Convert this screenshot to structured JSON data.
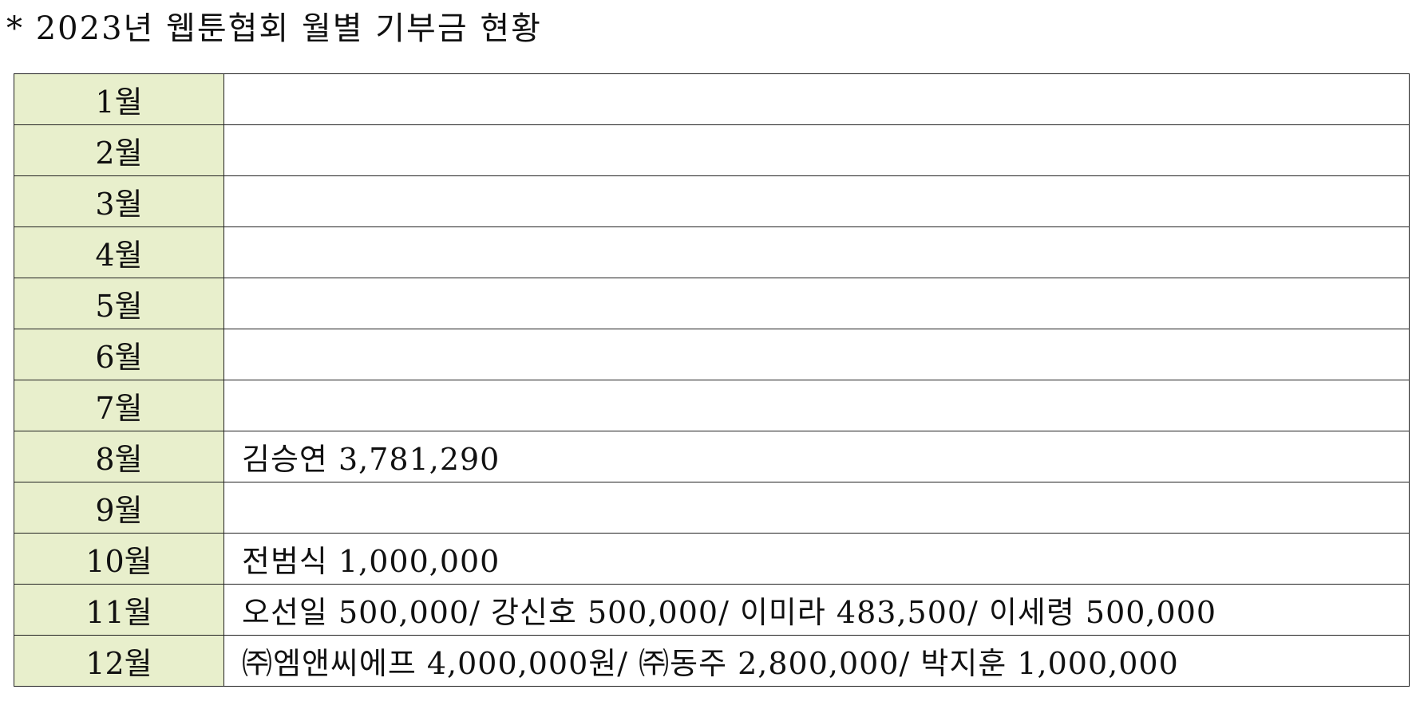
{
  "title": "* 2023년 웹툰협회 월별 기부금 현황",
  "rows": [
    {
      "month": "1월",
      "detail": ""
    },
    {
      "month": "2월",
      "detail": ""
    },
    {
      "month": "3월",
      "detail": ""
    },
    {
      "month": "4월",
      "detail": ""
    },
    {
      "month": "5월",
      "detail": ""
    },
    {
      "month": "6월",
      "detail": ""
    },
    {
      "month": "7월",
      "detail": ""
    },
    {
      "month": "8월",
      "detail": "김승연 3,781,290"
    },
    {
      "month": "9월",
      "detail": ""
    },
    {
      "month": "10월",
      "detail": "전범식 1,000,000"
    },
    {
      "month": "11월",
      "detail": "오선일 500,000/ 강신호 500,000/ 이미라 483,500/ 이세령 500,000"
    },
    {
      "month": "12월",
      "detail": "㈜엠앤씨에프 4,000,000원/ ㈜동주 2,800,000/ 박지훈 1,000,000"
    }
  ],
  "colors": {
    "month_cell_bg": "#e8efcc",
    "border": "#222222",
    "text": "#111111"
  }
}
